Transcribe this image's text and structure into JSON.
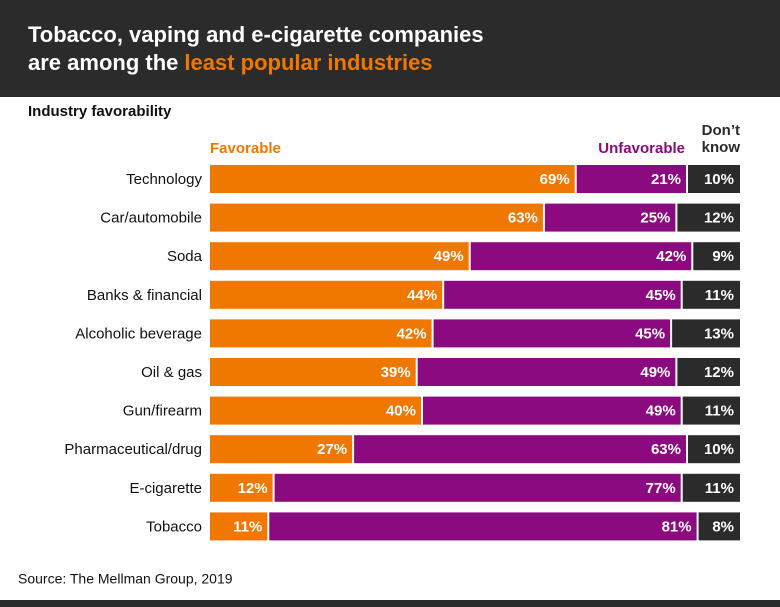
{
  "chart_data": {
    "type": "stacked-bar",
    "title": "Tobacco, vaping and e-cigarette companies",
    "title_2": "are among the",
    "title_highlight": "least popular industries",
    "subtitle": "Industry favorability",
    "source": "Source: The Mellman Group, 2019",
    "categories": [
      "Technology",
      "Car/automobile",
      "Soda",
      "Banks & financial",
      "Alcoholic beverage",
      "Oil & gas",
      "Gun/firearm",
      "Pharmaceutical/drug",
      "E-cigarette",
      "Tobacco"
    ],
    "xlim": [
      0,
      100
    ],
    "series": [
      {
        "name": "Favorable",
        "color": "#f07800",
        "values": [
          69,
          63,
          49,
          44,
          42,
          39,
          40,
          27,
          12,
          11
        ],
        "value_labels": [
          "69%",
          "63%",
          "49%",
          "44%",
          "42%",
          "39%",
          "40%",
          "27%",
          "12%",
          "11%"
        ]
      },
      {
        "name": "Unfavorable",
        "color": "#8b0a7f",
        "values": [
          21,
          25,
          42,
          45,
          45,
          49,
          49,
          63,
          77,
          81
        ],
        "value_labels": [
          "21%",
          "25%",
          "42%",
          "45%",
          "45%",
          "49%",
          "49%",
          "63%",
          "77%",
          "81%"
        ]
      },
      {
        "name": "Don’t know",
        "color": "#2b2b2b",
        "values": [
          10,
          12,
          9,
          11,
          13,
          12,
          11,
          10,
          11,
          8
        ],
        "value_labels": [
          "10%",
          "12%",
          "9%",
          "11%",
          "13%",
          "12%",
          "11%",
          "10%",
          "11%",
          "8%"
        ]
      }
    ]
  }
}
